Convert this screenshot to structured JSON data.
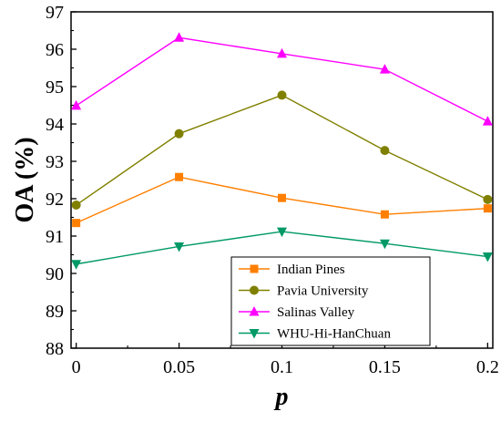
{
  "chart_data": {
    "type": "line",
    "title": "",
    "xlabel": "p",
    "ylabel": "OA (%)",
    "x": [
      0,
      0.05,
      0.1,
      0.15,
      0.2
    ],
    "x_tick_labels": [
      "0",
      "0.05",
      "0.1",
      "0.15",
      "0.2"
    ],
    "xlim": [
      -0.0025,
      0.2025
    ],
    "ylim": [
      88,
      97
    ],
    "y_ticks": [
      88,
      89,
      90,
      91,
      92,
      93,
      94,
      95,
      96,
      97
    ],
    "y_tick_labels": [
      "88",
      "89",
      "90",
      "91",
      "92",
      "93",
      "94",
      "95",
      "96",
      "97"
    ],
    "grid": false,
    "legend_position": "lower-right",
    "series": [
      {
        "name": "Indian Pines",
        "values": [
          91.35,
          92.58,
          92.02,
          91.58,
          91.74
        ],
        "color": "#ff7f00",
        "marker": "square"
      },
      {
        "name": "Pavia University",
        "values": [
          91.83,
          93.74,
          94.77,
          93.29,
          91.98
        ],
        "color": "#808000",
        "marker": "circle"
      },
      {
        "name": "Salinas Valley",
        "values": [
          94.49,
          96.31,
          95.88,
          95.46,
          94.07
        ],
        "color": "#ff00ff",
        "marker": "triangle-up"
      },
      {
        "name": "WHU-Hi-HanChuan",
        "values": [
          90.25,
          90.72,
          91.12,
          90.8,
          90.45
        ],
        "color": "#009966",
        "marker": "triangle-down"
      }
    ]
  }
}
